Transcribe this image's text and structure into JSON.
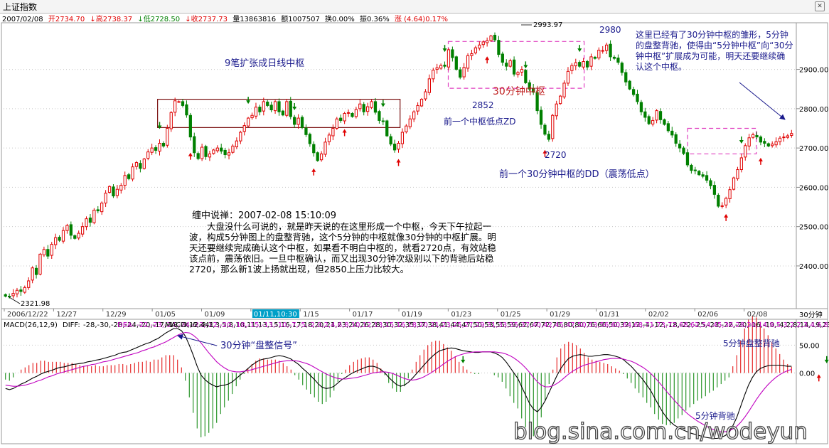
{
  "window": {
    "title": "上证指数"
  },
  "quote": {
    "date": "2007/02/08",
    "open_label": "开",
    "open": "2734.70",
    "high_label": "高",
    "high": "2738.37",
    "low_label": "低",
    "low": "2728.50",
    "close_label": "收",
    "close": "2737.73",
    "volume_label": "量",
    "volume": "13863816",
    "amount_label": "额",
    "amount": "1007507",
    "turnover_label": "换",
    "turnover": "0.00%",
    "amplitude_label": "振",
    "amplitude": "0.36%",
    "change_label": "涨",
    "change": "(4.64)0.17%"
  },
  "colors": {
    "up": "#e00000",
    "down": "#008000",
    "box_dark": "#7a1010",
    "box_pink": "#e040c0",
    "annot_blue": "#1a1a8c",
    "annot_red": "#c02020",
    "diff_line": "#000000",
    "dea_line": "#c000c0"
  },
  "chart_data": [
    {
      "type": "candlestick",
      "interval": "30分钟",
      "y_ticks": [
        2400,
        2500,
        2600,
        2700,
        2800,
        2900
      ],
      "y_tick_labels": [
        "2400.00",
        "2500.00",
        "2600.00",
        "2700.00",
        "2800.00",
        "2900.00"
      ],
      "ylim": [
        2295,
        3015
      ],
      "x_tick_labels": [
        "2006/12/22",
        "12/27",
        "12/29",
        "01/05",
        "01/09",
        "01/11,10:30",
        "1/15",
        "01/17",
        "01/19",
        "01/23",
        "01/25",
        "01/29",
        "01/31",
        "02/02",
        "02/06",
        "02/08"
      ],
      "cursor_label": "01/11,10:30",
      "price_labels": {
        "low": "2321.98",
        "high": "2993.97"
      },
      "closes": [
        2323,
        2322,
        2330,
        2338,
        2335,
        2345,
        2362,
        2395,
        2378,
        2430,
        2442,
        2425,
        2455,
        2472,
        2465,
        2490,
        2503,
        2478,
        2470,
        2483,
        2500,
        2520,
        2511,
        2542,
        2540,
        2560,
        2585,
        2602,
        2578,
        2595,
        2605,
        2630,
        2622,
        2652,
        2663,
        2648,
        2672,
        2690,
        2700,
        2694,
        2712,
        2705,
        2750,
        2790,
        2820,
        2818,
        2808,
        2784,
        2728,
        2688,
        2673,
        2702,
        2678,
        2685,
        2695,
        2700,
        2692,
        2683,
        2688,
        2705,
        2718,
        2740,
        2757,
        2776,
        2783,
        2804,
        2792,
        2818,
        2808,
        2797,
        2818,
        2792,
        2784,
        2818,
        2780,
        2760,
        2776,
        2752,
        2734,
        2711,
        2688,
        2668,
        2685,
        2715,
        2733,
        2750,
        2774,
        2770,
        2788,
        2790,
        2780,
        2798,
        2812,
        2792,
        2805,
        2818,
        2791,
        2770,
        2768,
        2731,
        2710,
        2695,
        2712,
        2740,
        2756,
        2774,
        2792,
        2808,
        2824,
        2843,
        2876,
        2898,
        2904,
        2910,
        2908,
        2950,
        2930,
        2900,
        2880,
        2905,
        2935,
        2940,
        2955,
        2962,
        2970,
        2973,
        2985,
        2975,
        2938,
        2918,
        2908,
        2922,
        2888,
        2892,
        2900,
        2866,
        2850,
        2842,
        2795,
        2760,
        2735,
        2722,
        2783,
        2812,
        2832,
        2865,
        2895,
        2910,
        2917,
        2908,
        2920,
        2906,
        2932,
        2928,
        2949,
        2948,
        2962,
        2932,
        2928,
        2918,
        2892,
        2868,
        2850,
        2836,
        2818,
        2792,
        2778,
        2762,
        2770,
        2795,
        2772,
        2760,
        2744,
        2733,
        2712,
        2700,
        2686,
        2657,
        2643,
        2643,
        2632,
        2628,
        2618,
        2604,
        2582,
        2552,
        2553,
        2572,
        2594,
        2624,
        2645,
        2675,
        2706,
        2726,
        2734,
        2728,
        2715,
        2712,
        2705,
        2710,
        2716,
        2725,
        2728,
        2731,
        2737
      ],
      "pivot_zones": [
        {
          "label": "9笔扩张成日线中枢",
          "level": "日线",
          "from": "01/04",
          "to": "01/18",
          "low": 2752,
          "high": 2824
        },
        {
          "label": "30分钟中枢",
          "level": "30分钟",
          "from": "01/22",
          "to": "01/29",
          "low": 2852,
          "high": 2971
        },
        {
          "label": "",
          "level": "5分钟扩展",
          "from": "02/06",
          "to": "02/08",
          "low": 2685,
          "high": 2750
        }
      ],
      "annotations": [
        {
          "text": "2852"
        },
        {
          "text": "前一个中枢低点ZD"
        },
        {
          "text": "2720"
        },
        {
          "text": "前一个30分钟中枢的DD（震荡低点）"
        },
        {
          "text": "2980"
        },
        {
          "text": "这里已经有了30分钟中枢的雏形，5分钟的盘整背驰，使得由“5分钟中枢”向“30分钟中枢”扩展成为可能，明天还要继续确认这个中枢。"
        }
      ],
      "commentary": {
        "title": "缠中说禅：2007-02-08 15:10:09",
        "body": "大盘没什么可说的，就是昨天说的在这里形成一个中枢，今天下午拉起一波，构成5分钟图上的盘整背驰，这个5分钟的中枢就像30分钟的中枢扩展。明天还要继续完成确认这个中枢，如果看不明白中枢的，就看2720点，有效站稳该点前，震荡依旧。一旦中枢确认，而又出现30分钟次级别以下的背驰后站稳2720，那么新1波上扬就出现，但2850上压力比较大。"
      }
    },
    {
      "type": "macd",
      "params": "MACD(26,12,9)",
      "diff_label": "DIFF:",
      "diff": [
        -28,
        -30,
        -28,
        -24,
        -20,
        -17,
        -13,
        -9,
        -6,
        -2,
        1,
        3,
        5,
        8,
        10,
        11,
        13,
        15,
        16,
        17,
        18,
        20,
        21,
        23,
        24,
        26,
        28,
        30,
        32,
        35,
        37,
        38,
        41,
        44,
        47,
        50,
        53,
        55,
        59,
        62,
        67,
        72,
        76,
        80,
        80,
        76,
        66,
        50,
        32,
        12,
        -4,
        -12,
        -18,
        -22,
        -25,
        -23,
        -22,
        -20,
        -16,
        -10,
        -4,
        2,
        8,
        14,
        19,
        23,
        25,
        26,
        28,
        30,
        31,
        30,
        28,
        25,
        20,
        15,
        8,
        2,
        -5,
        -12,
        -20,
        -26,
        -28,
        -27,
        -24,
        -18,
        -12,
        -8,
        -3,
        1,
        4,
        7,
        10,
        12,
        12,
        10,
        6,
        0,
        -8,
        -15,
        -21,
        -24,
        -22,
        -17,
        -10,
        -2,
        6,
        14,
        22,
        29,
        35,
        40,
        42,
        44,
        45,
        44,
        42,
        40,
        39,
        38,
        37,
        37,
        38,
        38,
        38,
        36,
        33,
        28,
        20,
        10,
        0,
        -10,
        -25,
        -40,
        -55,
        -65,
        -70,
        -62,
        -50,
        -35,
        -20,
        -5,
        8,
        18,
        26,
        30,
        32,
        33,
        32,
        30,
        30,
        31,
        32,
        33,
        33,
        32,
        30,
        28,
        24,
        18,
        12,
        4,
        -4,
        -12,
        -22,
        -32,
        -45,
        -58,
        -70,
        -80,
        -88,
        -94,
        -98,
        -102,
        -105,
        -108,
        -110,
        -112,
        -114,
        -116,
        -117,
        -118,
        -118,
        -116,
        -113,
        -108,
        -95,
        -80,
        -60,
        -40,
        -22,
        -8,
        2,
        8,
        11,
        13,
        14,
        14,
        14,
        13,
        12,
        12,
        12.676
      ],
      "dea_label": "DEA:",
      "dea": [
        -22,
        -23,
        -24,
        -24,
        -23,
        -22,
        -20,
        -18,
        -15,
        -13,
        -10,
        -7,
        -5,
        -2,
        0,
        2,
        4,
        6,
        8,
        10,
        12,
        13,
        15,
        16,
        18,
        20,
        21,
        23,
        25,
        27,
        29,
        31,
        33,
        35,
        37,
        40,
        42,
        45,
        47,
        50,
        53,
        56,
        60,
        64,
        68,
        71,
        73,
        72,
        68,
        62,
        54,
        45,
        36,
        28,
        20,
        14,
        9,
        5,
        3,
        2,
        2,
        3,
        4,
        6,
        8,
        10,
        12,
        14,
        16,
        18,
        20,
        21,
        22,
        22,
        22,
        21,
        19,
        17,
        14,
        10,
        6,
        2,
        -2,
        -5,
        -8,
        -10,
        -11,
        -11,
        -10,
        -9,
        -8,
        -6,
        -4,
        -2,
        0,
        1,
        2,
        2,
        1,
        -1,
        -4,
        -7,
        -10,
        -12,
        -13,
        -12,
        -10,
        -7,
        -3,
        1,
        6,
        11,
        16,
        21,
        25,
        29,
        32,
        34,
        36,
        37,
        38,
        38,
        38,
        38,
        38,
        38,
        37,
        36,
        34,
        31,
        27,
        22,
        16,
        9,
        1,
        -8,
        -16,
        -22,
        -25,
        -25,
        -23,
        -19,
        -14,
        -8,
        -2,
        3,
        7,
        11,
        14,
        16,
        18,
        20,
        22,
        24,
        25,
        26,
        26,
        26,
        25,
        23,
        21,
        18,
        14,
        10,
        5,
        -1,
        -8,
        -16,
        -24,
        -33,
        -41,
        -49,
        -57,
        -64,
        -71,
        -77,
        -82,
        -87,
        -91,
        -95,
        -99,
        -102,
        -105,
        -106,
        -106,
        -104,
        -101,
        -96,
        -89,
        -80,
        -70,
        -59,
        -48,
        -38,
        -29,
        -21,
        -14,
        -8,
        -3,
        1,
        4,
        6.456
      ],
      "macd_label": "MACD:",
      "macd": "12.441",
      "y_ticks": [
        0,
        50
      ],
      "y_tick_labels": [
        "0.00",
        "50.00"
      ],
      "ylim": [
        -125,
        80
      ],
      "annotations": [
        {
          "text": "30分钟“盘整信号”"
        },
        {
          "text": "5分钟盘整背驰"
        },
        {
          "text": "5分钟背驰"
        }
      ]
    }
  ],
  "watermark": "blog.sina.com.cn/wodeyun"
}
